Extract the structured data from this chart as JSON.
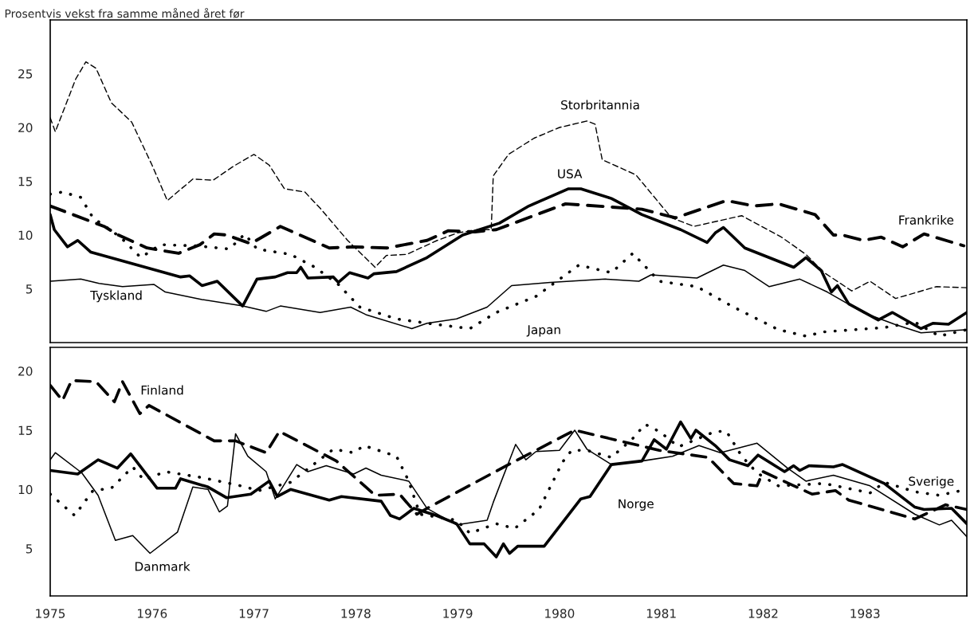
{
  "chart_data": [
    {
      "type": "line",
      "title": "Prosentvis vekst fra samme måned året før",
      "xlim": [
        1975,
        1984
      ],
      "xticks": [
        1975,
        1976,
        1977,
        1978,
        1979,
        1980,
        1981,
        1982,
        1983
      ],
      "ylim": [
        0,
        30
      ],
      "yticks": [
        5,
        10,
        15,
        20,
        25
      ],
      "tick_labels": "y",
      "grid": false,
      "legend": false,
      "series": [
        {
          "name": "Storbritannia",
          "color": "#000000",
          "line_style": "dashed",
          "x": [
            1975.0,
            1975.05,
            1975.25,
            1975.35,
            1975.45,
            1975.6,
            1975.8,
            1976.0,
            1976.15,
            1976.4,
            1976.6,
            1976.8,
            1977.0,
            1977.15,
            1977.3,
            1977.5,
            1977.65,
            1977.92,
            1978.19,
            1978.3,
            1978.5,
            1978.8,
            1979.0,
            1979.2,
            1979.33,
            1979.35,
            1979.5,
            1979.75,
            1980.0,
            1980.27,
            1980.35,
            1980.42,
            1980.75,
            1981.1,
            1981.32,
            1981.79,
            1982.18,
            1982.42,
            1982.6,
            1982.87,
            1983.05,
            1983.3,
            1983.7,
            1984.0
          ],
          "values": [
            20.9,
            19.6,
            24.5,
            26.1,
            25.5,
            22.3,
            20.5,
            16.5,
            13.2,
            15.2,
            15.1,
            16.4,
            17.5,
            16.5,
            14.3,
            14.0,
            12.5,
            9.5,
            7.0,
            8.1,
            8.2,
            9.5,
            10.2,
            10.5,
            10.5,
            15.5,
            17.5,
            19.0,
            20.0,
            20.6,
            20.3,
            17.0,
            15.6,
            11.6,
            10.8,
            11.8,
            9.8,
            8.2,
            6.5,
            4.8,
            5.7,
            4.1,
            5.2,
            5.1
          ]
        },
        {
          "name": "USA",
          "color": "#000000",
          "line_style": "solid",
          "x": [
            1975.0,
            1975.04,
            1975.17,
            1975.27,
            1975.4,
            1976.28,
            1976.37,
            1976.49,
            1976.64,
            1976.89,
            1977.03,
            1977.21,
            1977.33,
            1977.42,
            1977.46,
            1977.53,
            1977.78,
            1977.83,
            1977.94,
            1978.12,
            1978.18,
            1978.4,
            1978.7,
            1979.05,
            1979.41,
            1979.7,
            1980.09,
            1980.21,
            1980.51,
            1980.81,
            1981.19,
            1981.45,
            1981.53,
            1981.61,
            1981.82,
            1982.3,
            1982.42,
            1982.57,
            1982.67,
            1982.73,
            1982.84,
            1983.13,
            1983.27,
            1983.55,
            1983.67,
            1983.82,
            1984.0
          ],
          "values": [
            11.9,
            10.5,
            8.9,
            9.5,
            8.4,
            6.1,
            6.2,
            5.3,
            5.7,
            3.4,
            5.9,
            6.1,
            6.5,
            6.5,
            7.0,
            6.0,
            6.1,
            5.6,
            6.5,
            6.0,
            6.4,
            6.6,
            7.9,
            10.0,
            11.1,
            12.7,
            14.3,
            14.3,
            13.4,
            11.9,
            10.5,
            9.3,
            10.2,
            10.7,
            8.8,
            7.0,
            7.9,
            6.7,
            4.7,
            5.3,
            3.6,
            2.1,
            2.8,
            1.3,
            1.8,
            1.7,
            2.8
          ]
        },
        {
          "name": "Frankrike",
          "color": "#000000",
          "line_style": "dashed",
          "x": [
            1975.0,
            1975.53,
            1975.67,
            1975.95,
            1976.26,
            1976.47,
            1976.61,
            1976.73,
            1976.97,
            1977.26,
            1977.74,
            1977.98,
            1978.31,
            1978.7,
            1978.91,
            1979.17,
            1979.38,
            1980.06,
            1980.81,
            1981.14,
            1981.64,
            1981.91,
            1982.15,
            1982.51,
            1982.69,
            1982.78,
            1982.98,
            1983.16,
            1983.37,
            1983.58,
            1983.97
          ],
          "values": [
            12.7,
            10.8,
            10.0,
            8.8,
            8.3,
            9.1,
            10.1,
            10.0,
            9.2,
            10.8,
            8.8,
            8.9,
            8.8,
            9.5,
            10.4,
            10.3,
            10.5,
            12.9,
            12.4,
            11.6,
            13.2,
            12.7,
            12.9,
            11.9,
            10.0,
            10.0,
            9.5,
            9.8,
            8.9,
            10.1,
            9.0
          ]
        },
        {
          "name": "Tyskland",
          "color": "#000000",
          "line_style": "solid",
          "x": [
            1975.0,
            1975.3,
            1975.48,
            1975.71,
            1976.02,
            1976.13,
            1976.49,
            1976.89,
            1977.12,
            1977.26,
            1977.65,
            1977.95,
            1978.1,
            1978.55,
            1978.7,
            1978.99,
            1979.29,
            1979.47,
            1979.53,
            1979.91,
            1980.45,
            1980.78,
            1980.9,
            1981.35,
            1981.61,
            1981.82,
            1982.06,
            1982.36,
            1982.63,
            1982.98,
            1983.29,
            1983.55,
            1984.0
          ],
          "values": [
            5.7,
            5.9,
            5.5,
            5.2,
            5.4,
            4.7,
            4.0,
            3.4,
            2.9,
            3.4,
            2.8,
            3.3,
            2.6,
            1.3,
            1.8,
            2.2,
            3.3,
            4.8,
            5.3,
            5.6,
            5.9,
            5.7,
            6.3,
            6.0,
            7.2,
            6.7,
            5.2,
            5.9,
            4.7,
            2.8,
            1.7,
            0.9,
            1.2
          ]
        },
        {
          "name": "Japan",
          "color": "#000000",
          "line_style": "dotted",
          "x": [
            1975.0,
            1975.12,
            1975.3,
            1975.42,
            1975.69,
            1975.89,
            1976.08,
            1976.43,
            1976.76,
            1976.91,
            1977.03,
            1977.36,
            1977.6,
            1977.83,
            1978.04,
            1978.4,
            1978.7,
            1979.12,
            1979.38,
            1979.77,
            1980.19,
            1980.51,
            1980.72,
            1980.98,
            1981.35,
            1981.71,
            1982.15,
            1982.42,
            1982.6,
            1983.19,
            1983.49,
            1983.73,
            1984.0
          ],
          "values": [
            13.8,
            14.0,
            13.5,
            11.6,
            9.8,
            7.9,
            9.1,
            9.0,
            8.7,
            10.1,
            8.7,
            8.2,
            7.0,
            5.4,
            3.3,
            2.2,
            1.8,
            1.3,
            2.8,
            4.3,
            7.2,
            6.5,
            8.3,
            5.7,
            5.2,
            3.3,
            1.2,
            0.6,
            1.0,
            1.4,
            1.9,
            0.6,
            1.2
          ]
        }
      ]
    },
    {
      "type": "line",
      "xlim": [
        1975,
        1984
      ],
      "xticks": [
        1975,
        1976,
        1977,
        1978,
        1979,
        1980,
        1981,
        1982,
        1983
      ],
      "ylim": [
        1,
        22
      ],
      "yticks": [
        5,
        10,
        15,
        20
      ],
      "grid": false,
      "legend": false,
      "series": [
        {
          "name": "Finland",
          "color": "#000000",
          "line_style": "dashed",
          "x": [
            1975.0,
            1975.12,
            1975.21,
            1975.45,
            1975.63,
            1975.71,
            1975.88,
            1975.97,
            1976.61,
            1976.82,
            1977.12,
            1977.25,
            1977.81,
            1978.19,
            1978.43,
            1978.6,
            1978.7,
            1979.5,
            1980.15,
            1980.98,
            1981.46,
            1981.71,
            1981.94,
            1982.0,
            1982.48,
            1982.71,
            1982.84,
            1983.49,
            1983.79,
            1984.0
          ],
          "values": [
            18.8,
            17.5,
            19.2,
            19.1,
            17.4,
            19.1,
            16.4,
            17.1,
            14.1,
            14.1,
            13.1,
            14.9,
            12.4,
            9.5,
            9.6,
            7.9,
            8.4,
            12.1,
            15.0,
            13.3,
            12.7,
            10.5,
            10.3,
            11.5,
            9.6,
            9.9,
            9.1,
            7.5,
            8.7,
            8.3
          ]
        },
        {
          "name": "Danmark",
          "color": "#000000",
          "line_style": "solid",
          "x": [
            1975.0,
            1975.05,
            1975.31,
            1975.47,
            1975.64,
            1975.81,
            1975.98,
            1976.25,
            1976.4,
            1976.55,
            1976.66,
            1976.74,
            1976.82,
            1976.94,
            1977.12,
            1977.21,
            1977.42,
            1977.53,
            1977.71,
            1977.98,
            1978.1,
            1978.25,
            1978.52,
            1978.7,
            1978.99,
            1979.29,
            1979.35,
            1979.43,
            1979.57,
            1979.67,
            1979.77,
            1980.0,
            1980.15,
            1980.27,
            1980.51,
            1980.81,
            1981.11,
            1981.37,
            1981.58,
            1981.94,
            1982.24,
            1982.42,
            1982.69,
            1983.05,
            1983.49,
            1983.73,
            1983.85,
            1984.0
          ],
          "values": [
            12.5,
            13.1,
            11.4,
            9.5,
            5.7,
            6.1,
            4.6,
            6.4,
            10.2,
            10.0,
            8.1,
            8.6,
            14.7,
            12.8,
            11.5,
            9.2,
            12.1,
            11.5,
            12.0,
            11.3,
            11.8,
            11.2,
            10.7,
            8.4,
            7.0,
            7.4,
            8.9,
            10.7,
            13.8,
            12.5,
            13.2,
            13.3,
            15.0,
            13.4,
            12.1,
            12.4,
            12.8,
            13.7,
            13.1,
            13.9,
            11.8,
            10.7,
            11.2,
            10.3,
            7.9,
            7.0,
            7.4,
            6.0
          ]
        },
        {
          "name": "Norge",
          "color": "#000000",
          "line_style": "solid",
          "x": [
            1975.0,
            1975.27,
            1975.47,
            1975.66,
            1975.79,
            1976.05,
            1976.23,
            1976.28,
            1976.55,
            1976.73,
            1976.97,
            1977.15,
            1977.23,
            1977.36,
            1977.74,
            1977.86,
            1978.25,
            1978.34,
            1978.43,
            1978.57,
            1978.79,
            1978.99,
            1979.12,
            1979.26,
            1979.38,
            1979.45,
            1979.51,
            1979.59,
            1979.85,
            1980.21,
            1980.3,
            1980.51,
            1980.81,
            1980.93,
            1981.05,
            1981.19,
            1981.29,
            1981.34,
            1981.53,
            1981.67,
            1981.85,
            1981.95,
            1982.21,
            1982.3,
            1982.36,
            1982.45,
            1982.69,
            1982.78,
            1983.19,
            1983.49,
            1983.58,
            1983.85,
            1984.0
          ],
          "values": [
            11.6,
            11.3,
            12.5,
            11.8,
            13.0,
            10.1,
            10.1,
            10.9,
            10.2,
            9.3,
            9.6,
            10.7,
            9.4,
            10.0,
            9.1,
            9.4,
            9.0,
            7.8,
            7.5,
            8.4,
            7.8,
            7.1,
            5.4,
            5.4,
            4.3,
            5.4,
            4.6,
            5.2,
            5.2,
            9.2,
            9.4,
            12.1,
            12.4,
            14.2,
            13.4,
            15.7,
            14.3,
            15.0,
            13.7,
            12.5,
            12.0,
            12.9,
            11.5,
            12.0,
            11.6,
            12.0,
            11.9,
            12.1,
            10.5,
            8.5,
            8.3,
            8.4,
            7.1
          ]
        },
        {
          "name": "Sverige",
          "color": "#000000",
          "line_style": "dotted",
          "x": [
            1975.0,
            1975.24,
            1975.42,
            1975.6,
            1975.81,
            1975.92,
            1976.13,
            1976.49,
            1976.87,
            1977.05,
            1977.36,
            1977.78,
            1977.98,
            1978.08,
            1978.4,
            1978.52,
            1978.63,
            1978.99,
            1979.12,
            1979.38,
            1979.56,
            1979.8,
            1980.03,
            1980.12,
            1980.27,
            1980.51,
            1980.72,
            1980.84,
            1980.98,
            1981.17,
            1981.53,
            1981.64,
            1981.79,
            1981.94,
            1982.15,
            1982.6,
            1983.05,
            1983.19,
            1983.49,
            1983.73,
            1984.0
          ],
          "values": [
            9.6,
            7.8,
            9.9,
            10.1,
            11.9,
            10.8,
            11.5,
            11.0,
            10.3,
            9.9,
            10.6,
            13.4,
            13.1,
            13.7,
            12.8,
            10.7,
            7.9,
            7.4,
            6.3,
            7.1,
            6.7,
            8.3,
            12.3,
            13.3,
            13.3,
            12.7,
            14.3,
            15.5,
            14.9,
            13.6,
            14.9,
            14.9,
            12.8,
            11.4,
            10.3,
            10.5,
            9.7,
            10.6,
            9.8,
            9.5,
            10.0
          ]
        }
      ]
    }
  ]
}
